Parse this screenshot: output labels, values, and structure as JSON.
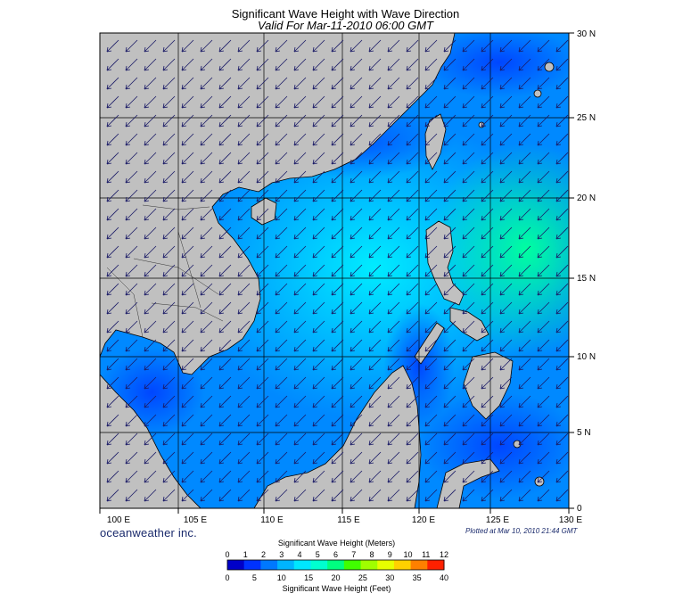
{
  "title": "Significant Wave Height with Wave Direction",
  "subtitle": "Valid For Mar-11-2010 06:00 GMT",
  "brand": "oceanweather inc.",
  "plotted": "Plotted at Mar 10, 2010 21:44 GMT",
  "map": {
    "lon_range": [
      100,
      130
    ],
    "lat_range": [
      0,
      30
    ],
    "lon_labels": [
      "100 E",
      "105 E",
      "110 E",
      "115 E",
      "120 E",
      "125 E",
      "130 E"
    ],
    "lat_labels": [
      "0",
      "5 N",
      "10 N",
      "15 N",
      "20 N",
      "25 N",
      "30 N"
    ],
    "land_color": "#c0c0c0",
    "wave_direction": "from northeast"
  },
  "colorbar": {
    "title_meters": "Significant Wave Height (Meters)",
    "title_feet": "Significant Wave Height (Feet)",
    "meter_ticks": [
      "0",
      "1",
      "2",
      "3",
      "4",
      "5",
      "6",
      "7",
      "8",
      "9",
      "10",
      "11",
      "12"
    ],
    "feet_ticks": [
      "0",
      "5",
      "10",
      "15",
      "20",
      "25",
      "30",
      "35",
      "40"
    ],
    "colors": [
      "#0000c8",
      "#0032ff",
      "#0078ff",
      "#00b4ff",
      "#00e6ff",
      "#00ffd0",
      "#00ff80",
      "#40ff00",
      "#a0ff00",
      "#e6ff00",
      "#ffd000",
      "#ff8000",
      "#ff2000"
    ]
  }
}
